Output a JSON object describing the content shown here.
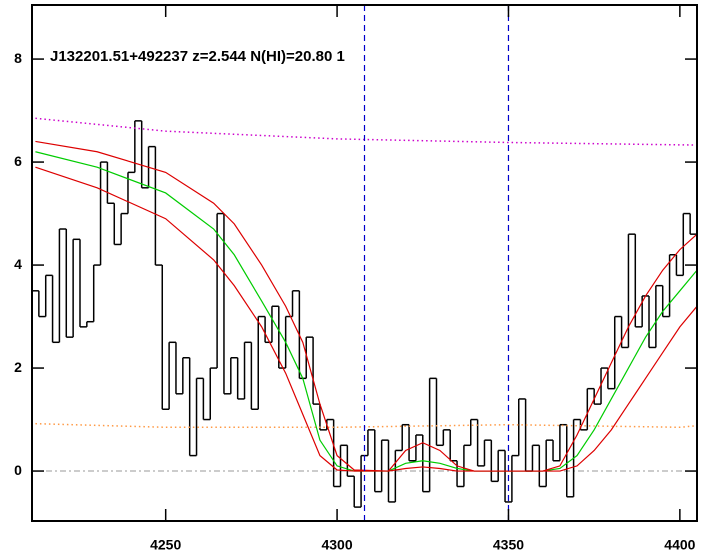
{
  "chart_data": {
    "type": "line",
    "annotation": "J132201.51+492237 z=2.544 N(HI)=20.80 1",
    "xlim": [
      4211,
      4405
    ],
    "ylim": [
      -0.97,
      9.05
    ],
    "xticks": [
      4250,
      4300,
      4350,
      4400
    ],
    "yticks": [
      0,
      2,
      4,
      6,
      8
    ],
    "vlines": [
      4308,
      4350
    ],
    "vline_color": "#0000cc",
    "series": [
      {
        "color": "#000000",
        "style": "step",
        "x": [
          4212,
          4214,
          4216,
          4218,
          4220,
          4222,
          4224,
          4226,
          4228,
          4230,
          4232,
          4234,
          4236,
          4238,
          4240,
          4242,
          4244,
          4246,
          4248,
          4250,
          4252,
          4254,
          4256,
          4258,
          4260,
          4262,
          4264,
          4266,
          4268,
          4270,
          4272,
          4274,
          4276,
          4278,
          4280,
          4282,
          4284,
          4286,
          4288,
          4290,
          4292,
          4294,
          4296,
          4298,
          4300,
          4302,
          4304,
          4306,
          4308,
          4310,
          4312,
          4314,
          4316,
          4318,
          4320,
          4322,
          4324,
          4326,
          4328,
          4330,
          4332,
          4334,
          4336,
          4338,
          4340,
          4342,
          4344,
          4346,
          4348,
          4350,
          4352,
          4354,
          4356,
          4358,
          4360,
          4362,
          4364,
          4366,
          4368,
          4370,
          4372,
          4374,
          4376,
          4378,
          4380,
          4382,
          4384,
          4386,
          4388,
          4390,
          4392,
          4394,
          4396,
          4398,
          4400,
          4402,
          4404
        ],
        "values": [
          3.5,
          3.0,
          3.8,
          2.5,
          4.7,
          2.6,
          4.5,
          2.8,
          2.9,
          4.0,
          6.0,
          5.2,
          4.4,
          5.0,
          5.8,
          6.8,
          5.5,
          6.3,
          4.0,
          1.2,
          2.5,
          1.5,
          2.2,
          0.3,
          1.8,
          1.0,
          2.0,
          5.0,
          1.5,
          2.2,
          1.4,
          2.5,
          1.2,
          3.0,
          2.5,
          3.2,
          2.0,
          3.0,
          3.5,
          1.8,
          2.6,
          1.3,
          0.8,
          1.0,
          -0.3,
          0.5,
          -0.1,
          -0.7,
          0.3,
          0.8,
          -0.4,
          0.6,
          -0.6,
          0.4,
          0.9,
          0.2,
          0.7,
          -0.4,
          1.8,
          0.5,
          0.8,
          0.2,
          -0.3,
          0.5,
          1.0,
          0.1,
          0.6,
          -0.2,
          0.4,
          -0.6,
          0.3,
          1.4,
          0.0,
          0.5,
          -0.3,
          0.6,
          0.2,
          0.9,
          -0.5,
          1.0,
          0.8,
          1.6,
          1.3,
          2.0,
          1.6,
          3.0,
          2.4,
          4.6,
          2.8,
          3.4,
          2.4,
          3.6,
          3.0,
          4.2,
          3.8,
          5.0,
          4.6
        ]
      },
      {
        "color": "#cc00cc",
        "style": "dotted",
        "x": [
          4212,
          4250,
          4300,
          4350,
          4405
        ],
        "values": [
          6.85,
          6.6,
          6.45,
          6.38,
          6.33
        ]
      },
      {
        "color": "#ff9944",
        "style": "dotted",
        "x": [
          4212,
          4250,
          4300,
          4350,
          4400,
          4405
        ],
        "values": [
          0.92,
          0.85,
          0.85,
          0.9,
          0.85,
          0.88
        ]
      },
      {
        "color": "#00cc00",
        "style": "solid",
        "x": [
          4212,
          4230,
          4250,
          4264,
          4270,
          4278,
          4285,
          4290,
          4295,
          4300,
          4305,
          4315,
          4320,
          4325,
          4330,
          4335,
          4340,
          4360,
          4365,
          4370,
          4375,
          4380,
          4385,
          4390,
          4395,
          4400,
          4405
        ],
        "values": [
          6.2,
          5.9,
          5.4,
          4.7,
          4.2,
          3.3,
          2.5,
          1.8,
          0.6,
          0.1,
          0,
          0,
          0.15,
          0.2,
          0.15,
          0.05,
          0,
          0,
          0.05,
          0.3,
          0.8,
          1.4,
          2.0,
          2.6,
          3.1,
          3.5,
          3.9
        ]
      },
      {
        "color": "#dd0000",
        "style": "solid",
        "x": [
          4212,
          4230,
          4250,
          4264,
          4270,
          4278,
          4285,
          4290,
          4295,
          4300,
          4305,
          4315,
          4320,
          4325,
          4330,
          4335,
          4340,
          4360,
          4365,
          4370,
          4375,
          4380,
          4385,
          4390,
          4395,
          4400,
          4405
        ],
        "values": [
          6.4,
          6.2,
          5.8,
          5.2,
          4.8,
          4.0,
          3.2,
          2.5,
          1.3,
          0.3,
          0.02,
          0,
          0.4,
          0.55,
          0.4,
          0.1,
          0,
          0,
          0.1,
          0.7,
          1.4,
          2.1,
          2.8,
          3.4,
          3.9,
          4.3,
          4.6
        ]
      },
      {
        "color": "#dd0000",
        "style": "solid",
        "x": [
          4212,
          4230,
          4250,
          4264,
          4270,
          4278,
          4285,
          4290,
          4295,
          4300,
          4305,
          4315,
          4320,
          4325,
          4330,
          4335,
          4340,
          4360,
          4365,
          4370,
          4375,
          4380,
          4385,
          4390,
          4395,
          4400,
          4405
        ],
        "values": [
          5.9,
          5.5,
          4.9,
          4.1,
          3.6,
          2.8,
          1.9,
          1.1,
          0.3,
          0.02,
          0,
          0,
          0.05,
          0.08,
          0.05,
          0,
          0,
          0,
          0,
          0.1,
          0.4,
          0.8,
          1.3,
          1.8,
          2.3,
          2.8,
          3.2
        ]
      }
    ]
  }
}
